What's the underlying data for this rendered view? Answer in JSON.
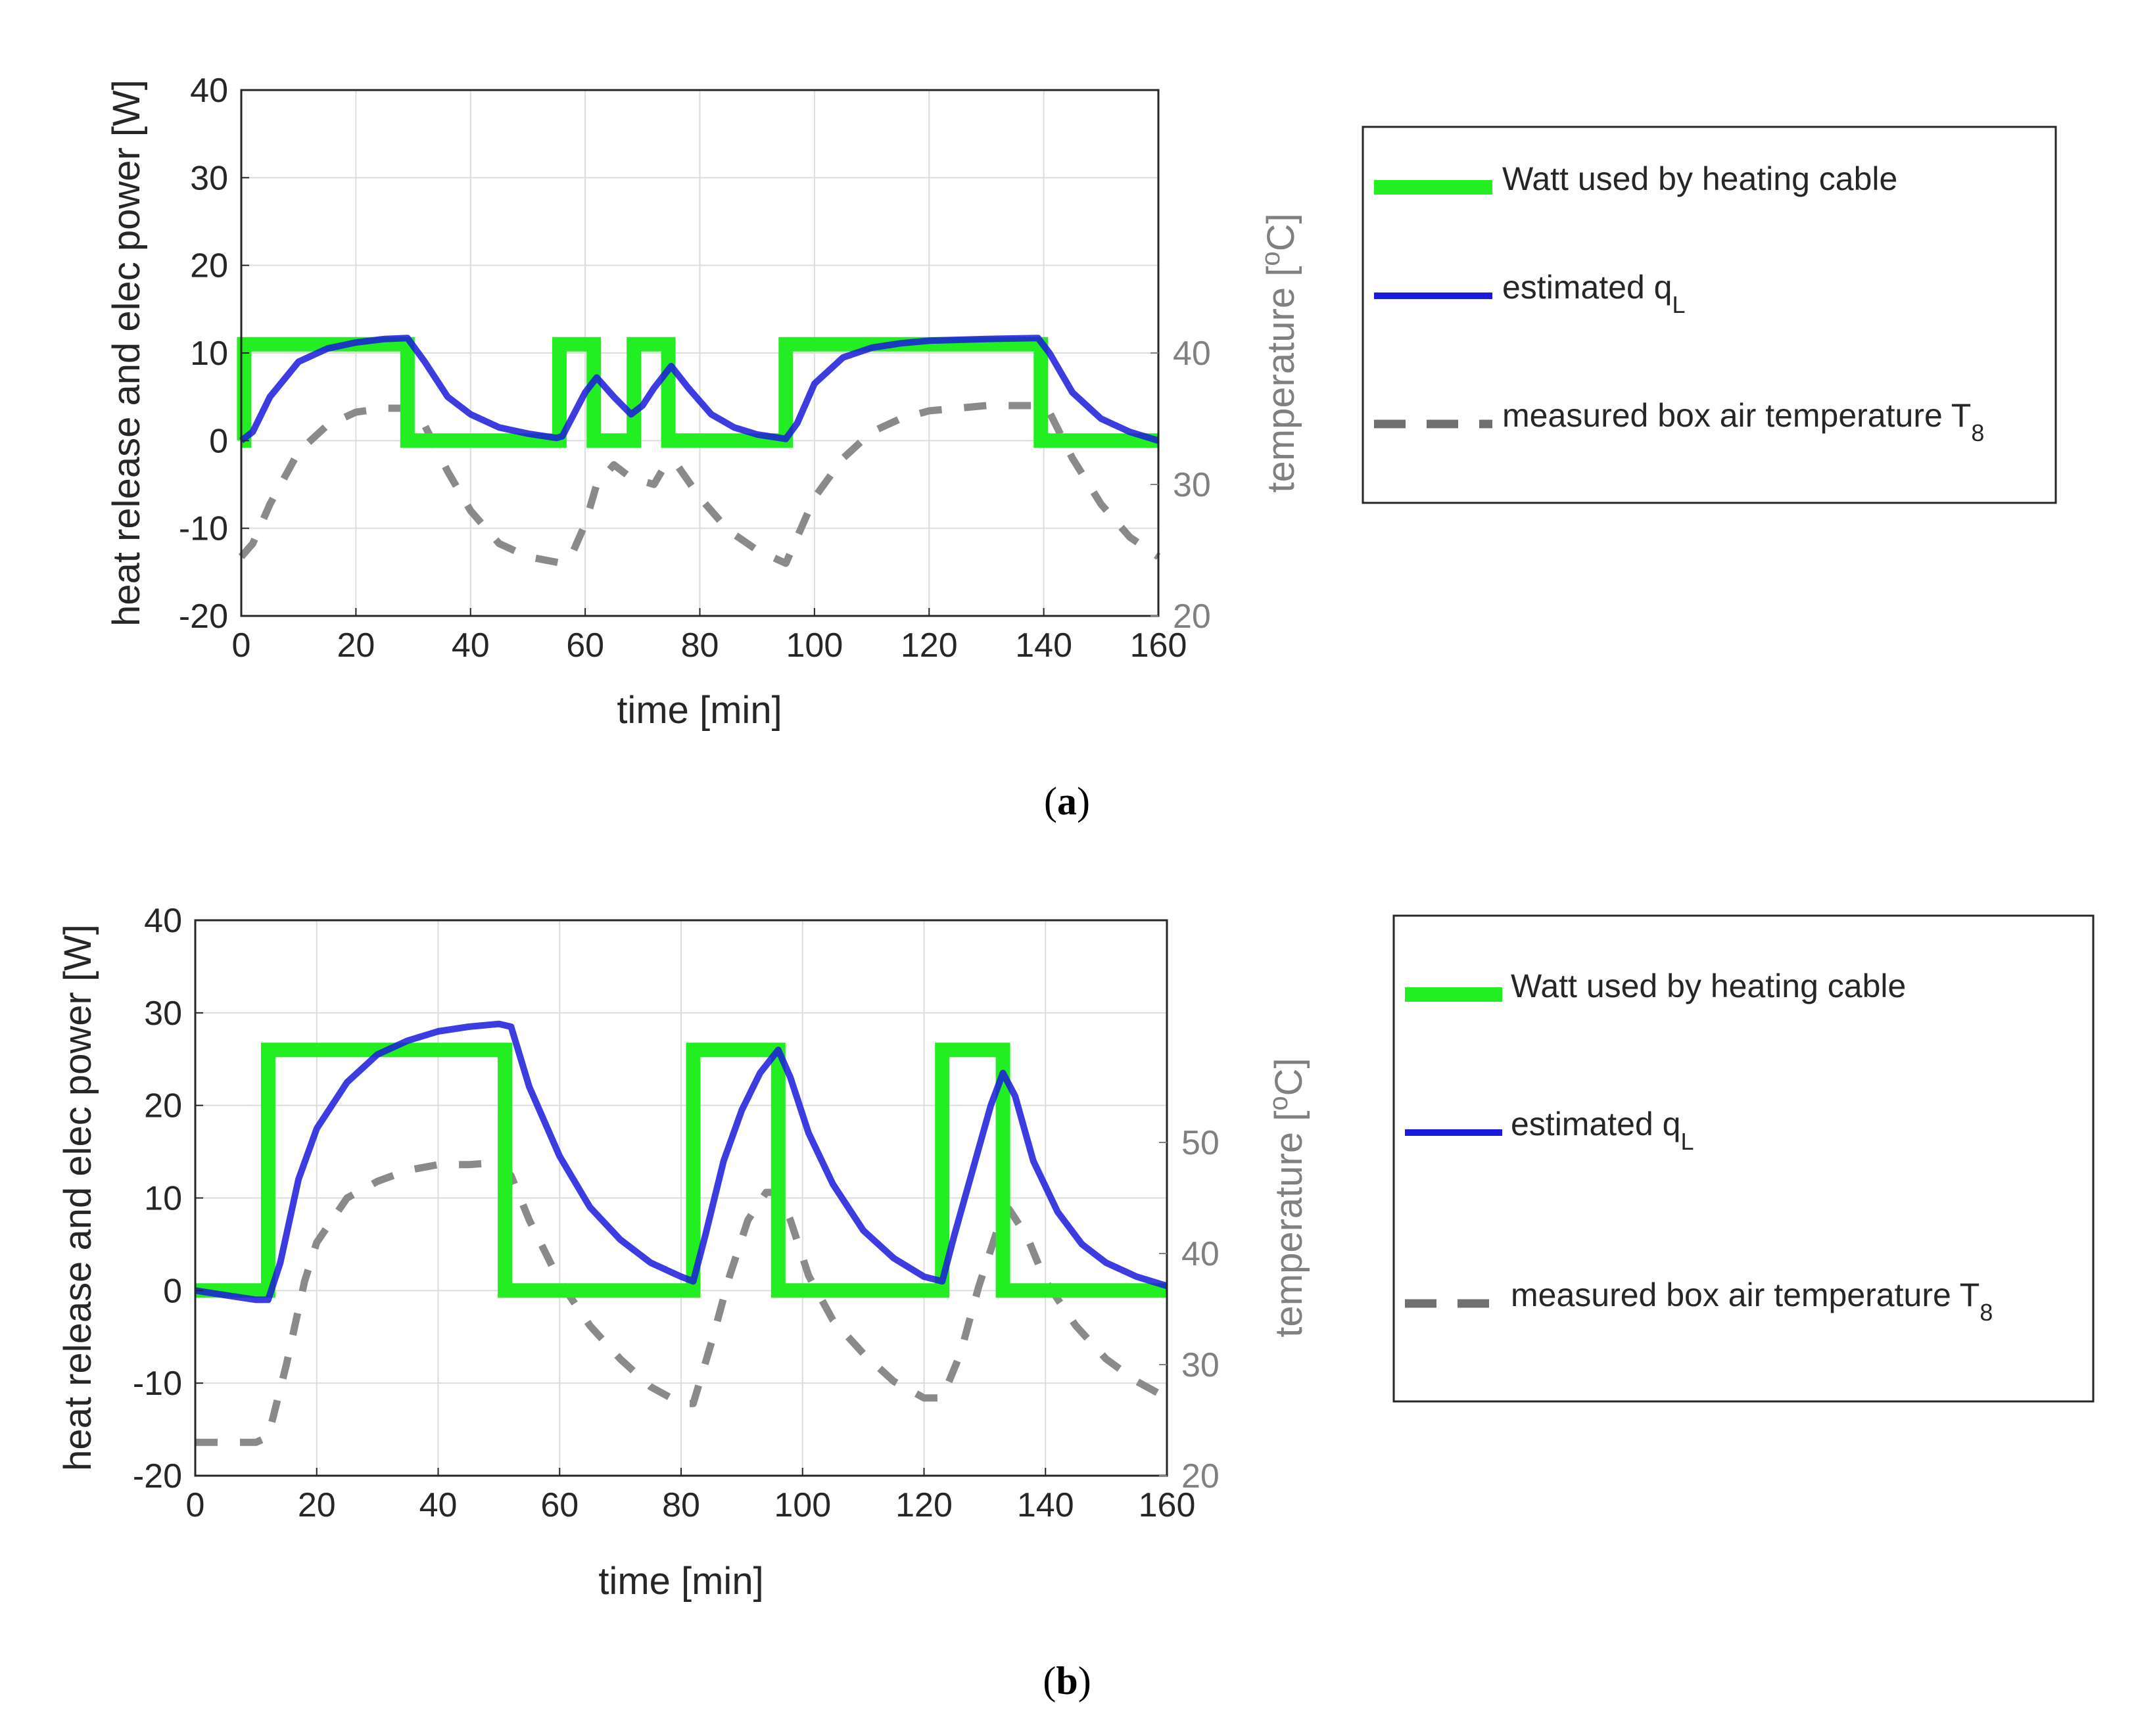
{
  "chart_data": [
    {
      "type": "line",
      "panel_label": "a",
      "xlabel": "time [min]",
      "ylabel": "heat release and elec power [W]",
      "y2label": "temperature [",
      "y2label_sup": "o",
      "y2label_unit": "C]",
      "xlim": [
        0,
        160
      ],
      "ylim": [
        -20,
        40
      ],
      "y2lim": [
        20,
        60
      ],
      "xticks": [
        0,
        20,
        40,
        60,
        80,
        100,
        120,
        140,
        160
      ],
      "yticks": [
        -20,
        -10,
        0,
        10,
        20,
        30,
        40
      ],
      "y2ticks": [
        20,
        30,
        40
      ],
      "grid": true,
      "legend_position": "right",
      "legend": [
        {
          "label": "Watt used by heating cable",
          "sub": "",
          "color": "#22ee22",
          "style": "thick-solid"
        },
        {
          "label": "estimated q",
          "sub": "L",
          "color": "#1a1adc",
          "style": "solid"
        },
        {
          "label": "measured box air temperature T",
          "sub": "8",
          "color": "#707070",
          "style": "dashed"
        }
      ],
      "series": [
        {
          "name": "Watt used by heating cable",
          "axis": "left",
          "step": true,
          "x": [
            0,
            0.5,
            0.5,
            29,
            29,
            55.5,
            55.5,
            61.5,
            61.5,
            68.5,
            68.5,
            74.5,
            74.5,
            95,
            95,
            139.5,
            139.5,
            160
          ],
          "y": [
            0,
            0,
            11,
            11,
            0,
            0,
            11,
            11,
            0,
            0,
            11,
            11,
            0,
            0,
            11,
            11,
            0,
            0
          ]
        },
        {
          "name": "estimated q_L",
          "axis": "left",
          "x": [
            0,
            2,
            5,
            10,
            15,
            20,
            25,
            29,
            32,
            36,
            40,
            45,
            50,
            55,
            56,
            58,
            60,
            62,
            65,
            68,
            70,
            72,
            75,
            78,
            82,
            86,
            90,
            95,
            97,
            100,
            105,
            110,
            115,
            120,
            130,
            139,
            141,
            145,
            150,
            155,
            160
          ],
          "y": [
            0,
            1,
            5,
            9,
            10.5,
            11.2,
            11.6,
            11.7,
            9,
            5,
            3,
            1.5,
            0.8,
            0.3,
            0.5,
            3,
            5.5,
            7.2,
            5,
            3,
            4,
            6,
            8.5,
            6,
            3,
            1.5,
            0.7,
            0.2,
            2,
            6.5,
            9.5,
            10.6,
            11.1,
            11.4,
            11.6,
            11.7,
            10,
            5.5,
            2.5,
            1,
            0
          ]
        },
        {
          "name": "measured box air temperature T_8",
          "axis": "right",
          "x": [
            0,
            2,
            5,
            10,
            15,
            20,
            25,
            29,
            32,
            36,
            40,
            45,
            50,
            56,
            58,
            60,
            62,
            65,
            68,
            72,
            74,
            76,
            80,
            85,
            90,
            95,
            97,
            100,
            105,
            110,
            115,
            120,
            130,
            139,
            141,
            145,
            150,
            155,
            160
          ],
          "y": [
            24.5,
            25.5,
            28.5,
            32.5,
            34.5,
            35.5,
            35.8,
            35.8,
            34.5,
            31,
            28,
            25.5,
            24.5,
            24,
            25,
            27,
            30,
            31.5,
            30.5,
            30,
            31.5,
            31.5,
            29,
            26.5,
            25,
            24,
            26,
            29,
            32,
            34,
            35,
            35.6,
            36,
            36,
            35.5,
            32,
            28.5,
            26,
            24.5
          ]
        }
      ]
    },
    {
      "type": "line",
      "panel_label": "b",
      "xlabel": "time [min]",
      "ylabel": "heat release and elec power [W]",
      "y2label": "temperature [",
      "y2label_sup": "o",
      "y2label_unit": "C]",
      "xlim": [
        0,
        160
      ],
      "ylim": [
        -20,
        40
      ],
      "y2lim": [
        20,
        70
      ],
      "xticks": [
        0,
        20,
        40,
        60,
        80,
        100,
        120,
        140,
        160
      ],
      "yticks": [
        -20,
        -10,
        0,
        10,
        20,
        30,
        40
      ],
      "y2ticks": [
        20,
        30,
        40,
        50
      ],
      "grid": true,
      "legend_position": "right",
      "legend": [
        {
          "label": "Watt used by heating cable",
          "sub": "",
          "color": "#22ee22",
          "style": "thick-solid"
        },
        {
          "label": "estimated q",
          "sub": "L",
          "color": "#1a1adc",
          "style": "solid"
        },
        {
          "label": "measured box air temperature T",
          "sub": "8",
          "color": "#707070",
          "style": "dashed"
        }
      ],
      "series": [
        {
          "name": "Watt used by heating cable",
          "axis": "left",
          "step": true,
          "x": [
            0,
            12,
            12,
            51,
            51,
            82,
            82,
            96,
            96,
            123,
            123,
            133,
            133,
            160
          ],
          "y": [
            0,
            0,
            26,
            26,
            0,
            0,
            26,
            26,
            0,
            0,
            26,
            26,
            0,
            0
          ]
        },
        {
          "name": "estimated q_L",
          "axis": "left",
          "x": [
            0,
            5,
            10,
            12,
            14,
            17,
            20,
            25,
            30,
            35,
            40,
            45,
            50,
            52,
            55,
            60,
            65,
            70,
            75,
            80,
            82,
            84,
            87,
            90,
            93,
            96,
            98,
            101,
            105,
            110,
            115,
            120,
            123,
            125,
            128,
            131,
            133,
            135,
            138,
            142,
            146,
            150,
            155,
            160
          ],
          "y": [
            0,
            -0.5,
            -1,
            -1,
            3,
            12,
            17.5,
            22.5,
            25.5,
            27,
            28,
            28.5,
            28.8,
            28.5,
            22,
            14.5,
            9,
            5.5,
            3,
            1.5,
            1,
            6,
            14,
            19.5,
            23.5,
            26,
            23,
            17,
            11.5,
            6.5,
            3.5,
            1.5,
            1,
            6,
            13,
            20,
            23.5,
            21,
            14,
            8.5,
            5,
            3,
            1.5,
            0.5
          ]
        },
        {
          "name": "measured box air temperature T_8",
          "axis": "right",
          "x": [
            0,
            5,
            10,
            12,
            15,
            18,
            20,
            25,
            30,
            35,
            40,
            45,
            50,
            52,
            55,
            60,
            65,
            70,
            75,
            80,
            82,
            85,
            88,
            91,
            94,
            96,
            98,
            101,
            105,
            110,
            115,
            120,
            123,
            126,
            129,
            132,
            134,
            137,
            140,
            145,
            150,
            155,
            160
          ],
          "y": [
            23,
            23,
            23,
            23.5,
            30,
            37.5,
            41,
            45,
            46.5,
            47.5,
            48,
            48,
            48.2,
            47,
            43,
            37.5,
            33.5,
            30.5,
            28,
            26.5,
            26.5,
            32,
            38,
            43,
            45.5,
            45.5,
            43,
            38,
            34,
            31,
            28.5,
            27,
            27,
            31,
            37,
            42,
            44,
            41.5,
            37.5,
            33.5,
            30.5,
            28.5,
            27
          ]
        }
      ]
    }
  ],
  "captions": {
    "a": {
      "open": "(",
      "letter": "a",
      "close": ")"
    },
    "b": {
      "open": "(",
      "letter": "b",
      "close": ")"
    }
  }
}
